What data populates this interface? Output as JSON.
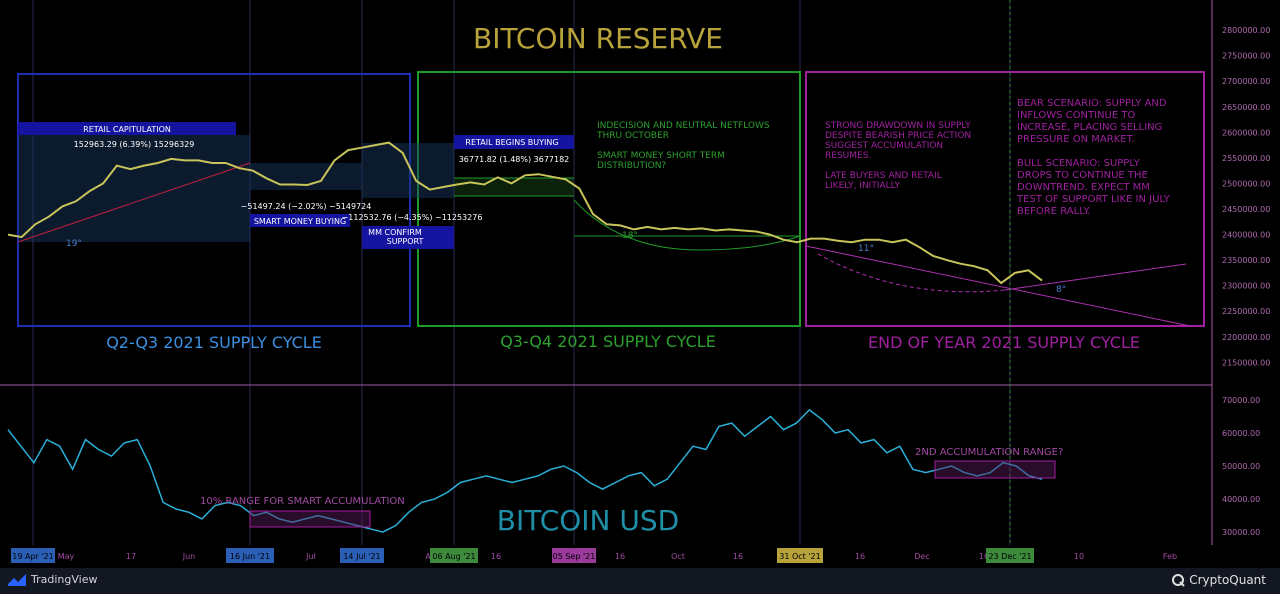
{
  "colors": {
    "background": "#000000",
    "price_line": "#c9c45a",
    "usd_line": "#2ab0d8",
    "blue": "#1a2fb5",
    "green": "#1f9b2a",
    "magenta": "#a020a0",
    "title_gold": "#b8a23a",
    "axis_text": "#b06ab0"
  },
  "chart_data": [
    {
      "type": "line",
      "title": "BITCOIN RESERVE",
      "y_axis_ticks": [
        "2800000.00",
        "2750000.00",
        "2700000.00",
        "2650000.00",
        "2600000.00",
        "2550000.00",
        "2500000.00",
        "2450000.00",
        "2400000.00",
        "2350000.00",
        "2300000.00",
        "2250000.00",
        "2200000.00",
        "2150000.00"
      ],
      "ylim": [
        2135000,
        2810000
      ],
      "series": [
        {
          "values": [
            2400000,
            2395000,
            2420000,
            2435000,
            2455000,
            2465000,
            2485000,
            2500000,
            2535000,
            2528000,
            2535000,
            2540000,
            2548000,
            2545000,
            2545000,
            2540000,
            2540000,
            2530000,
            2525000,
            2510000,
            2498000,
            2498000,
            2497000,
            2505000,
            2545000,
            2565000,
            2570000,
            2575000,
            2580000,
            2560000,
            2505000,
            2488000,
            2493000,
            2498000,
            2502000,
            2498000,
            2512000,
            2500000,
            2516000,
            2518000,
            2513000,
            2508000,
            2490000,
            2440000,
            2420000,
            2418000,
            2410000,
            2415000,
            2410000,
            2413000,
            2410000,
            2412000,
            2408000,
            2410000,
            2408000,
            2406000,
            2400000,
            2390000,
            2385000,
            2392000,
            2392000,
            2388000,
            2385000,
            2390000,
            2390000,
            2385000,
            2390000,
            2375000,
            2358000,
            2350000,
            2343000,
            2338000,
            2330000,
            2305000,
            2325000,
            2330000,
            2310000
          ]
        }
      ],
      "annotations": {
        "retail_capitulation": {
          "label": "RETAIL CAPITULATION",
          "value": "152963.29 (6.39%) 15296329"
        },
        "smart_money_buying": {
          "label": "SMART MONEY BUYING",
          "value": "−51497.24 (−2.02%) −5149724"
        },
        "mm_confirm": {
          "label": "MM CONFIRM SUPPORT",
          "value": "−112532.76 (−4.35%) −11253276"
        },
        "retail_begins": {
          "label": "RETAIL BEGINS BUYING",
          "value": "36771.82 (1.48%) 3677182"
        },
        "angle_19": "19°",
        "angle_18": "18°",
        "angle_11": "11°",
        "angle_8": "8°",
        "green_note": "INDECISION AND NEUTRAL NETFLOWS THRU OCTOBER\n\nSMART MONEY SHORT TERM DISTRIBUTION?",
        "magenta_note_1": "STRONG DRAWDOWN IN SUPPLY DESPITE BEARISH PRICE ACTION SUGGEST ACCUMULATION RESUMES.\n\nLATE BUYERS AND RETAIL LIKELY, INITIALLY",
        "magenta_note_2": "BEAR SCENARIO: SUPPLY AND INFLOWS CONTINUE TO INCREASE, PLACING SELLING PRESSURE ON MARKET.\n\nBULL SCENARIO: SUPPLY DROPS TO CONTINUE THE DOWNTREND. EXPECT MM TEST OF SUPPORT LIKE IN JULY BEFORE RALLY."
      },
      "cycles": [
        "Q2-Q3 2021 SUPPLY CYCLE",
        "Q3-Q4 2021 SUPPLY CYCLE",
        "END OF YEAR 2021 SUPPLY CYCLE"
      ]
    },
    {
      "type": "line",
      "title": "BITCOIN USD",
      "y_axis_ticks": [
        "70000.00",
        "60000.00",
        "50000.00",
        "40000.00",
        "30000.00"
      ],
      "ylim": [
        27000,
        71500
      ],
      "series": [
        {
          "values": [
            61000,
            56000,
            51000,
            58000,
            56000,
            49000,
            58000,
            55000,
            53000,
            57000,
            58000,
            50000,
            39000,
            37000,
            36000,
            34000,
            38000,
            39000,
            38000,
            35000,
            36000,
            34000,
            33000,
            34000,
            35000,
            34000,
            33000,
            32000,
            31000,
            30000,
            32000,
            36000,
            39000,
            40000,
            42000,
            45000,
            46000,
            47000,
            46000,
            45000,
            46000,
            47000,
            49000,
            50000,
            48000,
            45000,
            43000,
            45000,
            47000,
            48000,
            44000,
            46000,
            51000,
            56000,
            55000,
            62000,
            63000,
            59000,
            62000,
            65000,
            61000,
            63000,
            67000,
            64000,
            60000,
            61000,
            57000,
            58000,
            54000,
            56000,
            49000,
            48000,
            49000,
            50000,
            48000,
            47000,
            48000,
            51000,
            50000,
            47000,
            46000
          ]
        }
      ],
      "annotations": {
        "range_10": "10% RANGE FOR SMART ACCUMULATION",
        "second_range": "2ND ACCUMULATION RANGE?"
      }
    }
  ],
  "x_axis": {
    "ticks": [
      "May",
      "17",
      "Jun",
      "Jul",
      "Aug",
      "16",
      "16",
      "Oct",
      "16",
      "Nov",
      "16",
      "Dec",
      "16",
      "10",
      "Feb"
    ],
    "highlighted": [
      "19 Apr '21",
      "16 Jun '21",
      "14 Jul '21",
      "06 Aug '21",
      "05 Sep '21",
      "31 Oct '21",
      "23 Dec '21"
    ]
  },
  "footer": {
    "left": "TradingView",
    "right": "CryptoQuant"
  }
}
